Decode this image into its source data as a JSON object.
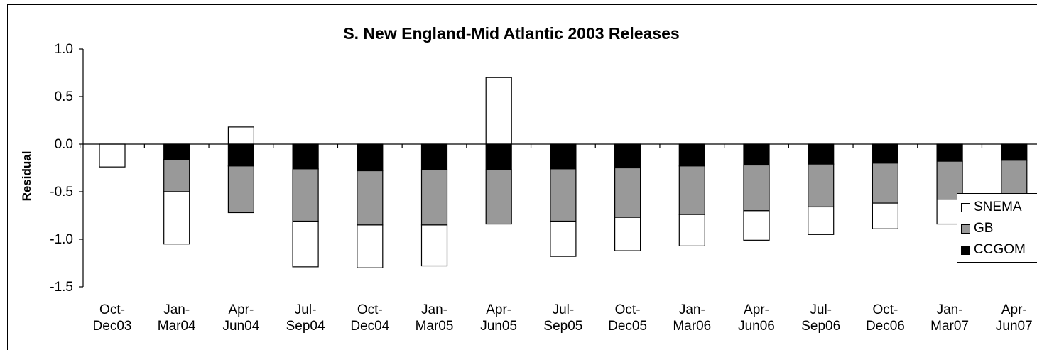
{
  "chart_data": {
    "type": "bar",
    "stacked": true,
    "title": "S. New England-Mid Atlantic 2003 Releases",
    "ylabel": "Residual",
    "xlabel": "",
    "ylim": [
      -1.5,
      1.0
    ],
    "yticks": [
      "1.0",
      "0.5",
      "0.0",
      "-0.5",
      "-1.0",
      "-1.5"
    ],
    "ytick_values": [
      1.0,
      0.5,
      0.0,
      -0.5,
      -1.0,
      -1.5
    ],
    "categories": [
      [
        "Oct-",
        "Dec03"
      ],
      [
        "Jan-",
        "Mar04"
      ],
      [
        "Apr-",
        "Jun04"
      ],
      [
        "Jul-",
        "Sep04"
      ],
      [
        "Oct-",
        "Dec04"
      ],
      [
        "Jan-",
        "Mar05"
      ],
      [
        "Apr-",
        "Jun05"
      ],
      [
        "Jul-",
        "Sep05"
      ],
      [
        "Oct-",
        "Dec05"
      ],
      [
        "Jan-",
        "Mar06"
      ],
      [
        "Apr-",
        "Jun06"
      ],
      [
        "Jul-",
        "Sep06"
      ],
      [
        "Oct-",
        "Dec06"
      ],
      [
        "Jan-",
        "Mar07"
      ],
      [
        "Apr-",
        "Jun07"
      ]
    ],
    "series": [
      {
        "name": "CCGOM",
        "color": "#000000",
        "values": [
          0,
          -0.16,
          -0.23,
          -0.26,
          -0.28,
          -0.27,
          -0.27,
          -0.26,
          -0.25,
          -0.23,
          -0.22,
          -0.21,
          -0.2,
          -0.18,
          -0.17
        ]
      },
      {
        "name": "GB",
        "color": "#999999",
        "values": [
          0,
          -0.34,
          -0.49,
          -0.55,
          -0.57,
          -0.58,
          -0.57,
          -0.55,
          -0.52,
          -0.51,
          -0.48,
          -0.45,
          -0.42,
          -0.4,
          -0.38
        ]
      },
      {
        "name": "SNEMA",
        "color": "#ffffff",
        "values": [
          -0.24,
          -0.55,
          0.18,
          -0.48,
          -0.45,
          -0.43,
          0.7,
          -0.37,
          -0.35,
          -0.33,
          -0.31,
          -0.29,
          -0.27,
          -0.26,
          -0.25
        ]
      }
    ],
    "legend": {
      "placement": "right",
      "order": [
        "SNEMA",
        "GB",
        "CCGOM"
      ],
      "labels": [
        "SNEMA",
        "GB",
        "CCGOM"
      ]
    },
    "grid": false
  }
}
